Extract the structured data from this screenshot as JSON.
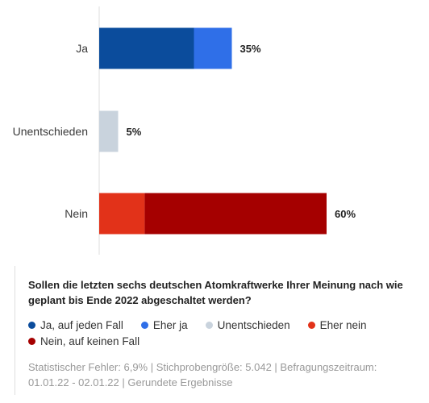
{
  "chart_data": {
    "type": "bar",
    "orientation": "horizontal",
    "stacked": true,
    "categories": [
      "Ja",
      "Unentschieden",
      "Nein"
    ],
    "series": [
      {
        "name": "Ja, auf jeden Fall",
        "color": "#0b4c9c",
        "values": [
          25,
          0,
          0
        ]
      },
      {
        "name": "Eher ja",
        "color": "#2f6fe8",
        "values": [
          10,
          0,
          0
        ]
      },
      {
        "name": "Unentschieden",
        "color": "#c9d3dd",
        "values": [
          0,
          5,
          0
        ]
      },
      {
        "name": "Eher nein",
        "color": "#e23219",
        "values": [
          0,
          0,
          12
        ]
      },
      {
        "name": "Nein, auf keinen Fall",
        "color": "#a50000",
        "values": [
          0,
          0,
          48
        ]
      }
    ],
    "totals": [
      "35%",
      "5%",
      "60%"
    ],
    "xlim": [
      0,
      100
    ],
    "grid": false,
    "legend": "bottom"
  },
  "info": {
    "question": "Sollen die letzten sechs deutschen Atomkraftwerke Ihrer Meinung nach wie geplant bis Ende 2022 abgeschaltet werden?",
    "footnote": "Statistischer Fehler: 6,9% | Stichprobengröße: 5.042 | Befragungszeitraum: 01.01.22 - 02.01.22 | Gerundete Ergebnisse"
  }
}
